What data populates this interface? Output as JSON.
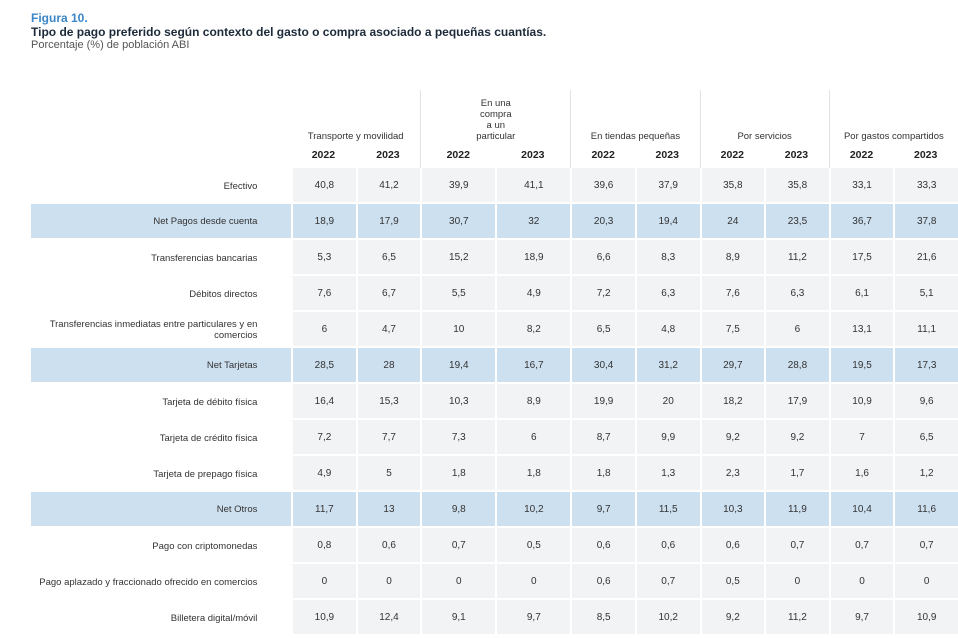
{
  "figure": {
    "label": "Figura 10.",
    "title": "Tipo de pago preferido según contexto del gasto o compra asociado a pequeñas cuantías.",
    "subtitle": "Porcentaje (%) de población ABI"
  },
  "table": {
    "groups": [
      "Transporte y movilidad",
      "En una compra a un particular",
      "En tiendas pequeñas",
      "Por servicios",
      "Por gastos compartidos"
    ],
    "years": [
      "2022",
      "2023"
    ],
    "rows": [
      {
        "label": "Efectivo",
        "highlight": false,
        "values": [
          "40,8",
          "41,2",
          "39,9",
          "41,1",
          "39,6",
          "37,9",
          "35,8",
          "35,8",
          "33,1",
          "33,3"
        ]
      },
      {
        "label": "Net Pagos desde cuenta",
        "highlight": true,
        "values": [
          "18,9",
          "17,9",
          "30,7",
          "32",
          "20,3",
          "19,4",
          "24",
          "23,5",
          "36,7",
          "37,8"
        ]
      },
      {
        "label": "Transferencias bancarias",
        "highlight": false,
        "values": [
          "5,3",
          "6,5",
          "15,2",
          "18,9",
          "6,6",
          "8,3",
          "8,9",
          "11,2",
          "17,5",
          "21,6"
        ]
      },
      {
        "label": "Débitos directos",
        "highlight": false,
        "values": [
          "7,6",
          "6,7",
          "5,5",
          "4,9",
          "7,2",
          "6,3",
          "7,6",
          "6,3",
          "6,1",
          "5,1"
        ]
      },
      {
        "label": "Transferencias inmediatas entre particulares y en comercios",
        "highlight": false,
        "values": [
          "6",
          "4,7",
          "10",
          "8,2",
          "6,5",
          "4,8",
          "7,5",
          "6",
          "13,1",
          "11,1"
        ]
      },
      {
        "label": "Net Tarjetas",
        "highlight": true,
        "values": [
          "28,5",
          "28",
          "19,4",
          "16,7",
          "30,4",
          "31,2",
          "29,7",
          "28,8",
          "19,5",
          "17,3"
        ]
      },
      {
        "label": "Tarjeta de débito física",
        "highlight": false,
        "values": [
          "16,4",
          "15,3",
          "10,3",
          "8,9",
          "19,9",
          "20",
          "18,2",
          "17,9",
          "10,9",
          "9,6"
        ]
      },
      {
        "label": "Tarjeta de crédito física",
        "highlight": false,
        "values": [
          "7,2",
          "7,7",
          "7,3",
          "6",
          "8,7",
          "9,9",
          "9,2",
          "9,2",
          "7",
          "6,5"
        ]
      },
      {
        "label": "Tarjeta de prepago física",
        "highlight": false,
        "values": [
          "4,9",
          "5",
          "1,8",
          "1,8",
          "1,8",
          "1,3",
          "2,3",
          "1,7",
          "1,6",
          "1,2"
        ]
      },
      {
        "label": "Net Otros",
        "highlight": true,
        "values": [
          "11,7",
          "13",
          "9,8",
          "10,2",
          "9,7",
          "11,5",
          "10,3",
          "11,9",
          "10,4",
          "11,6"
        ]
      },
      {
        "label": "Pago con criptomonedas",
        "highlight": false,
        "values": [
          "0,8",
          "0,6",
          "0,7",
          "0,5",
          "0,6",
          "0,6",
          "0,6",
          "0,7",
          "0,7",
          "0,7"
        ]
      },
      {
        "label": "Pago aplazado y fraccionado ofrecido en comercios",
        "highlight": false,
        "values": [
          "0",
          "0",
          "0",
          "0",
          "0,6",
          "0,7",
          "0,5",
          "0",
          "0",
          "0"
        ]
      },
      {
        "label": "Billetera digital/móvil",
        "highlight": false,
        "values": [
          "10,9",
          "12,4",
          "9,1",
          "9,7",
          "8,5",
          "10,2",
          "9,2",
          "11,2",
          "9,7",
          "10,9"
        ]
      }
    ]
  }
}
